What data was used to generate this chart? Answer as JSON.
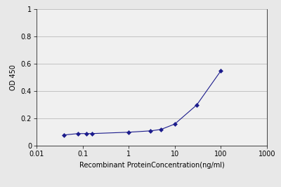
{
  "x_values": [
    0.04,
    0.08,
    0.12,
    0.16,
    1.0,
    3.0,
    5.0,
    10.0,
    30.0,
    100.0
  ],
  "y_values": [
    0.08,
    0.09,
    0.09,
    0.09,
    0.1,
    0.11,
    0.12,
    0.16,
    0.3,
    0.55
  ],
  "xlim": [
    0.01,
    1000
  ],
  "ylim": [
    0,
    1.0
  ],
  "yticks": [
    0,
    0.2,
    0.4,
    0.6,
    0.8,
    1.0
  ],
  "ytick_labels": [
    "0",
    "0.2",
    "0.4",
    "0.6",
    "0.8",
    "1"
  ],
  "xtick_positions": [
    0.01,
    0.1,
    1,
    10,
    100,
    1000
  ],
  "xtick_labels": [
    "0.01",
    "0.1",
    "1",
    "10",
    "100",
    "1000"
  ],
  "xlabel": "Recombinant ProteinConcentration(ng/ml)",
  "ylabel": "OD 450",
  "line_color": "#1C1C8C",
  "marker_color": "#1C1C8C",
  "marker": "D",
  "marker_size": 3,
  "line_width": 0.8,
  "background_color": "#f0f0f0",
  "grid_color": "#bbbbbb",
  "font_size_label": 7,
  "font_size_tick": 7
}
